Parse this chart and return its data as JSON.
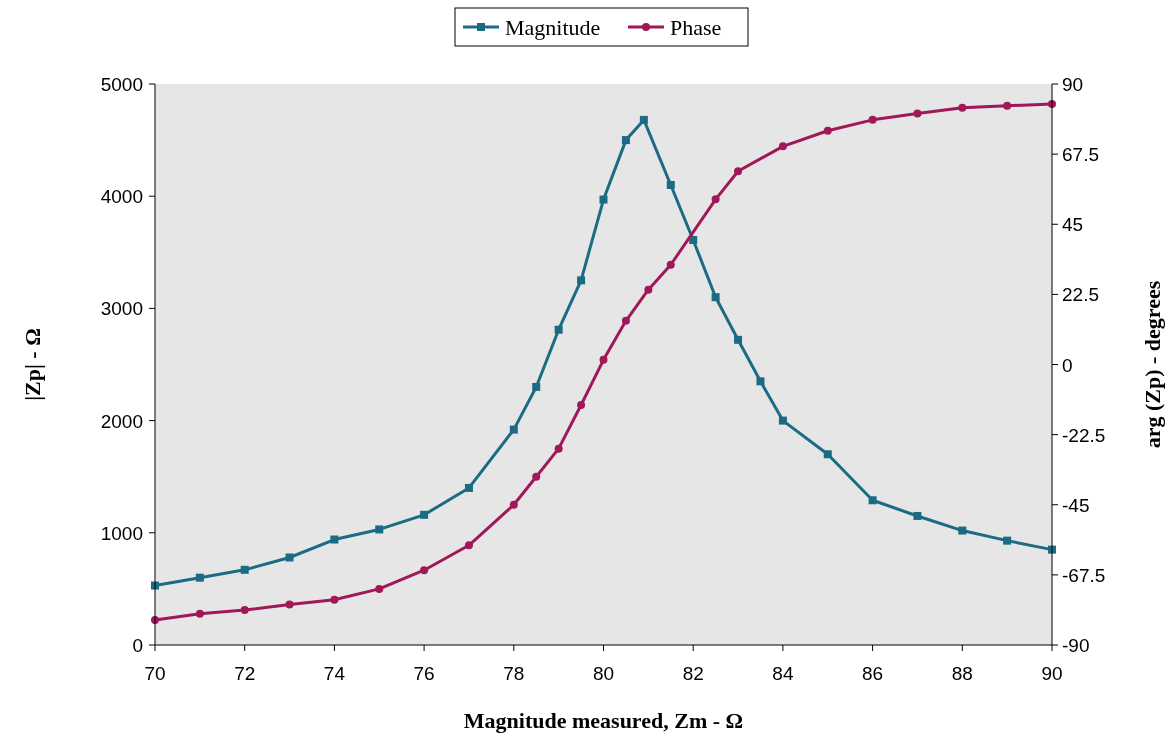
{
  "chart_data": {
    "type": "line",
    "xlabel": "Magnitude measured, Zm - Ω",
    "ylabel": "|Zp| - Ω",
    "y2label": "arg (Zp) - degrees",
    "xlim": [
      70,
      90
    ],
    "xticks": [
      70,
      72,
      74,
      76,
      78,
      80,
      82,
      84,
      86,
      88,
      90
    ],
    "ylim": [
      0,
      5000
    ],
    "yticks": [
      0,
      1000,
      2000,
      3000,
      4000,
      5000
    ],
    "y2lim": [
      -90,
      90
    ],
    "y2ticks": [
      -90,
      -67.5,
      -45,
      -22.5,
      0,
      22.5,
      45,
      67.5,
      90
    ],
    "grid": false,
    "legend": "top",
    "series": [
      {
        "name": "Magnitude",
        "color": "#1b6b85",
        "marker": "square",
        "x": [
          70,
          71,
          72,
          73,
          74,
          75,
          76,
          77,
          78,
          78.5,
          79,
          79.5,
          80,
          80.5,
          80.9,
          81.5,
          82,
          82.5,
          83,
          83.5,
          84,
          85,
          86,
          87,
          88,
          89,
          90
        ],
        "values": [
          530,
          600,
          670,
          780,
          940,
          1030,
          1160,
          1400,
          1920,
          2300,
          2810,
          3250,
          3970,
          4500,
          4680,
          4100,
          3610,
          3100,
          2720,
          2350,
          2000,
          1700,
          1290,
          1150,
          1020,
          930,
          850
        ]
      },
      {
        "name": "Phase",
        "color": "#a0185a",
        "marker": "circle",
        "axis": "y2",
        "x": [
          70,
          71,
          72,
          73,
          74,
          75,
          76,
          77,
          78,
          78.5,
          79,
          79.5,
          80,
          80.5,
          81,
          81.5,
          82.5,
          83,
          84,
          85,
          86,
          87,
          88,
          89,
          90
        ],
        "values": [
          -82,
          -80,
          -78.8,
          -77,
          -75.5,
          -72,
          -66,
          -58,
          -45,
          -36,
          -27,
          -13,
          1.5,
          14,
          24,
          32,
          53,
          62,
          70,
          75,
          78.5,
          80.5,
          82.4,
          83,
          83.6
        ]
      }
    ]
  }
}
